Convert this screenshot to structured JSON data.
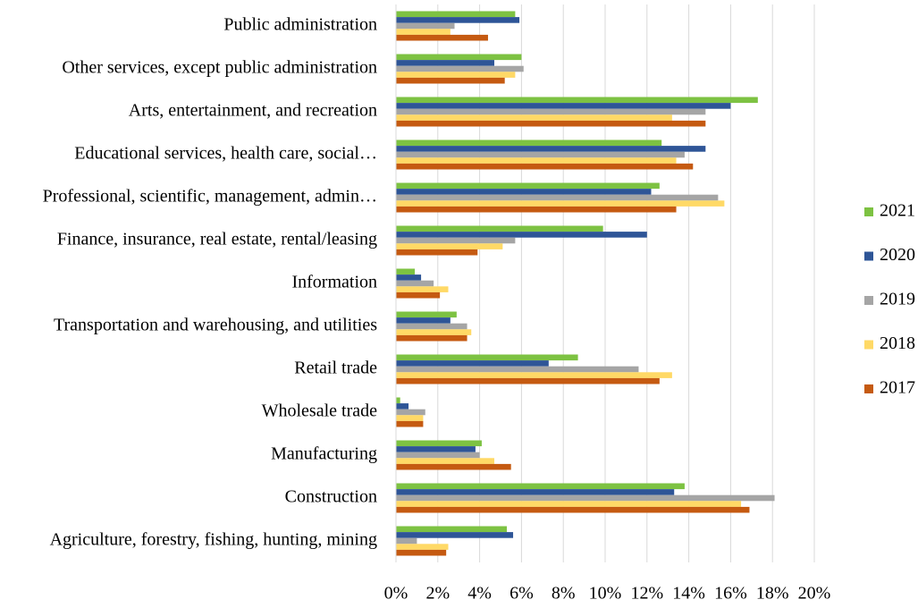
{
  "chart_data": {
    "type": "barh",
    "categories": [
      "Public administration",
      "Other services, except public administration",
      "Arts, entertainment, and recreation",
      "Educational services, health care, social…",
      "Professional, scientific, management, admin…",
      "Finance, insurance, real estate, rental/leasing",
      "Information",
      "Transportation and warehousing, and utilities",
      "Retail trade",
      "Wholesale trade",
      "Manufacturing",
      "Construction",
      "Agriculture, forestry, fishing, hunting, mining"
    ],
    "series": [
      {
        "name": "2021",
        "color": "#7dc242",
        "values": [
          5.7,
          6.0,
          17.3,
          12.7,
          12.6,
          9.9,
          0.9,
          2.9,
          8.7,
          0.2,
          4.1,
          13.8,
          5.3
        ]
      },
      {
        "name": "2020",
        "color": "#2e5597",
        "values": [
          5.9,
          4.7,
          16.0,
          14.8,
          12.2,
          12.0,
          1.2,
          2.6,
          7.3,
          0.6,
          3.8,
          13.3,
          5.6
        ]
      },
      {
        "name": "2019",
        "color": "#a5a5a5",
        "values": [
          2.8,
          6.1,
          14.8,
          13.8,
          15.4,
          5.7,
          1.8,
          3.4,
          11.6,
          1.4,
          4.0,
          18.1,
          1.0
        ]
      },
      {
        "name": "2018",
        "color": "#ffd966",
        "values": [
          2.6,
          5.7,
          13.2,
          13.4,
          15.7,
          5.1,
          2.5,
          3.6,
          13.2,
          1.3,
          4.7,
          16.5,
          2.5
        ]
      },
      {
        "name": "2017",
        "color": "#c55a11",
        "values": [
          4.4,
          5.2,
          14.8,
          14.2,
          13.4,
          3.9,
          2.1,
          3.4,
          12.6,
          1.3,
          5.5,
          16.9,
          2.4
        ]
      }
    ],
    "xlim": [
      0,
      20
    ],
    "xticks": [
      {
        "value": 0,
        "label": "0%"
      },
      {
        "value": 2,
        "label": "2%"
      },
      {
        "value": 4,
        "label": "4%"
      },
      {
        "value": 6,
        "label": "6%"
      },
      {
        "value": 8,
        "label": "8%"
      },
      {
        "value": 10,
        "label": "10%"
      },
      {
        "value": 12,
        "label": "12%"
      },
      {
        "value": 14,
        "label": "14%"
      },
      {
        "value": 16,
        "label": "16%"
      },
      {
        "value": 18,
        "label": "18%"
      },
      {
        "value": 20,
        "label": "20%"
      }
    ],
    "grid": true,
    "legend": "right"
  }
}
